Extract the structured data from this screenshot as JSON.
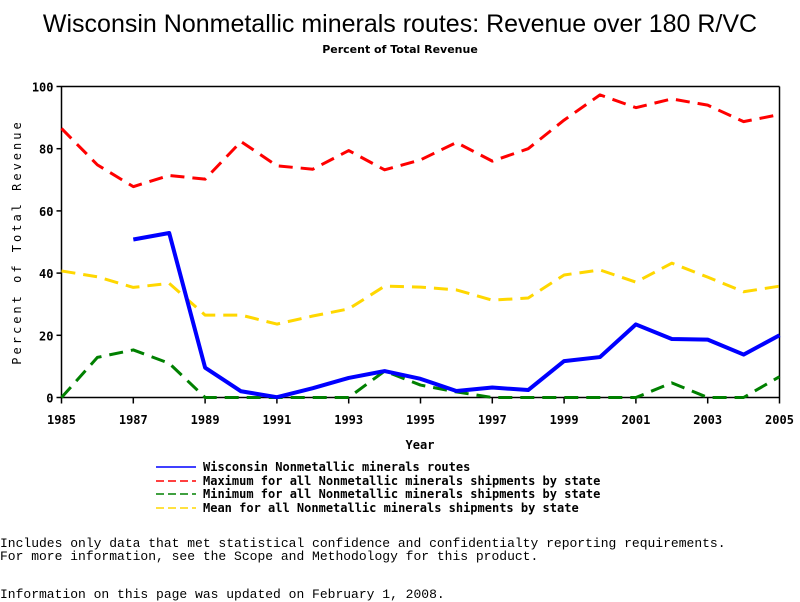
{
  "chart_data": {
    "type": "line",
    "title": "Wisconsin Nonmetallic minerals routes: Revenue over 180 R/VC",
    "subtitle": "Percent of Total Revenue",
    "xlabel": "Year",
    "ylabel": "Percent of Total Revenue",
    "xlim": [
      1985,
      2005
    ],
    "ylim": [
      0,
      100
    ],
    "x_ticks": [
      "1985",
      "1987",
      "1989",
      "1991",
      "1993",
      "1995",
      "1997",
      "1999",
      "2001",
      "2003",
      "2005"
    ],
    "y_ticks": [
      "0",
      "20",
      "40",
      "60",
      "80",
      "100"
    ],
    "grid": false,
    "legend_position": "bottom",
    "x": [
      1985,
      1986,
      1987,
      1988,
      1989,
      1990,
      1991,
      1992,
      1993,
      1994,
      1995,
      1996,
      1997,
      1998,
      1999,
      2000,
      2001,
      2002,
      2003,
      2004,
      2005
    ],
    "series": [
      {
        "name": "Wisconsin Nonmetallic minerals routes",
        "color": "#0000ff",
        "style": "solid",
        "values": [
          null,
          null,
          50.8,
          52.9,
          9.6,
          2.0,
          0.1,
          3.0,
          6.3,
          8.5,
          6.0,
          2.1,
          3.2,
          2.4,
          11.7,
          13.0,
          23.5,
          18.8,
          18.6,
          13.8,
          20.0
        ]
      },
      {
        "name": "Maximum for all Nonmetallic minerals shipments by state",
        "color": "#ff0000",
        "style": "dashed",
        "values": [
          86.5,
          74.8,
          67.8,
          71.4,
          70.2,
          82.3,
          74.5,
          73.4,
          79.4,
          73.2,
          76.4,
          82.0,
          76.0,
          80.0,
          89.2,
          97.3,
          93.2,
          96.0,
          94.0,
          88.7,
          91.0
        ]
      },
      {
        "name": "Minimum for all Nonmetallic minerals shipments by state",
        "color": "#008000",
        "style": "dashed",
        "values": [
          0.0,
          12.9,
          15.3,
          11.0,
          0.0,
          0.0,
          0.0,
          0.0,
          0.0,
          8.5,
          4.0,
          1.8,
          0.0,
          0.0,
          0.0,
          0.0,
          0.0,
          4.7,
          0.0,
          0.0,
          6.7
        ]
      },
      {
        "name": "Mean for all Nonmetallic minerals shipments by state",
        "color": "#ffd700",
        "style": "dashed",
        "values": [
          40.7,
          38.8,
          35.4,
          36.7,
          26.5,
          26.5,
          23.6,
          26.2,
          28.5,
          35.8,
          35.5,
          34.6,
          31.3,
          32.0,
          39.4,
          41.0,
          37.1,
          43.2,
          38.7,
          34.0,
          35.8
        ]
      }
    ]
  },
  "notes": {
    "line1": "Includes only data that met statistical confidence and confidentialty reporting requirements.",
    "line2": "For more information, see the Scope and Methodology for this product.",
    "updated": "Information on this page was updated on February 1, 2008."
  }
}
